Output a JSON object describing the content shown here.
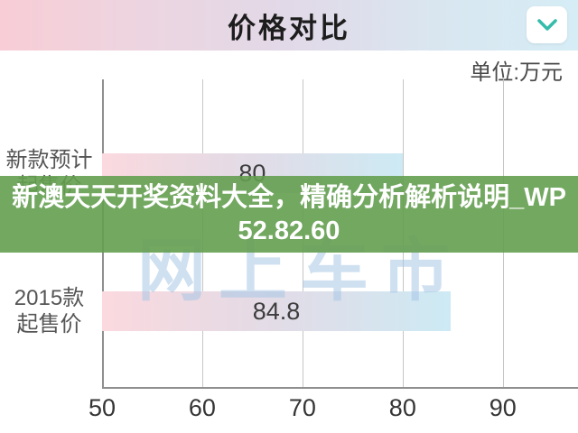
{
  "header": {
    "title": "价格对比",
    "collapse_icon": "chevron-down-icon",
    "chevron_color": "#35bcab",
    "gradient": [
      "#f8cdd6",
      "#e2d9e8",
      "#d6edf6"
    ]
  },
  "unit_label": "单位:万元",
  "watermark": "网上车市",
  "overlay": {
    "line1": "新澳天天开奖资料大全，精确分析解析说明_WP",
    "line2": "52.82.60",
    "bg_color": "#649e50",
    "text_color": "#ffffff"
  },
  "chart_data": {
    "type": "bar",
    "orientation": "horizontal",
    "title": "价格对比",
    "unit": "万元",
    "categories": [
      [
        "新款预计",
        "起售价"
      ],
      [
        "2015款",
        "起售价"
      ]
    ],
    "values": [
      80,
      84.8
    ],
    "value_labels": [
      "80",
      "84.8"
    ],
    "x_ticks": [
      50,
      60,
      70,
      80,
      90
    ],
    "xlim": [
      50,
      97.5
    ],
    "grid": true,
    "legend": false,
    "bar_tops": [
      82,
      235
    ],
    "bar_gradient": [
      "#fbd9df",
      "#e0dde8",
      "#cdeaf4"
    ],
    "colors": {
      "grid": "#c6c6c6",
      "axis": "#8f8f8f",
      "tick_label": "#353535",
      "value_label": "#3d3d3d",
      "category_label": "#555555"
    }
  }
}
